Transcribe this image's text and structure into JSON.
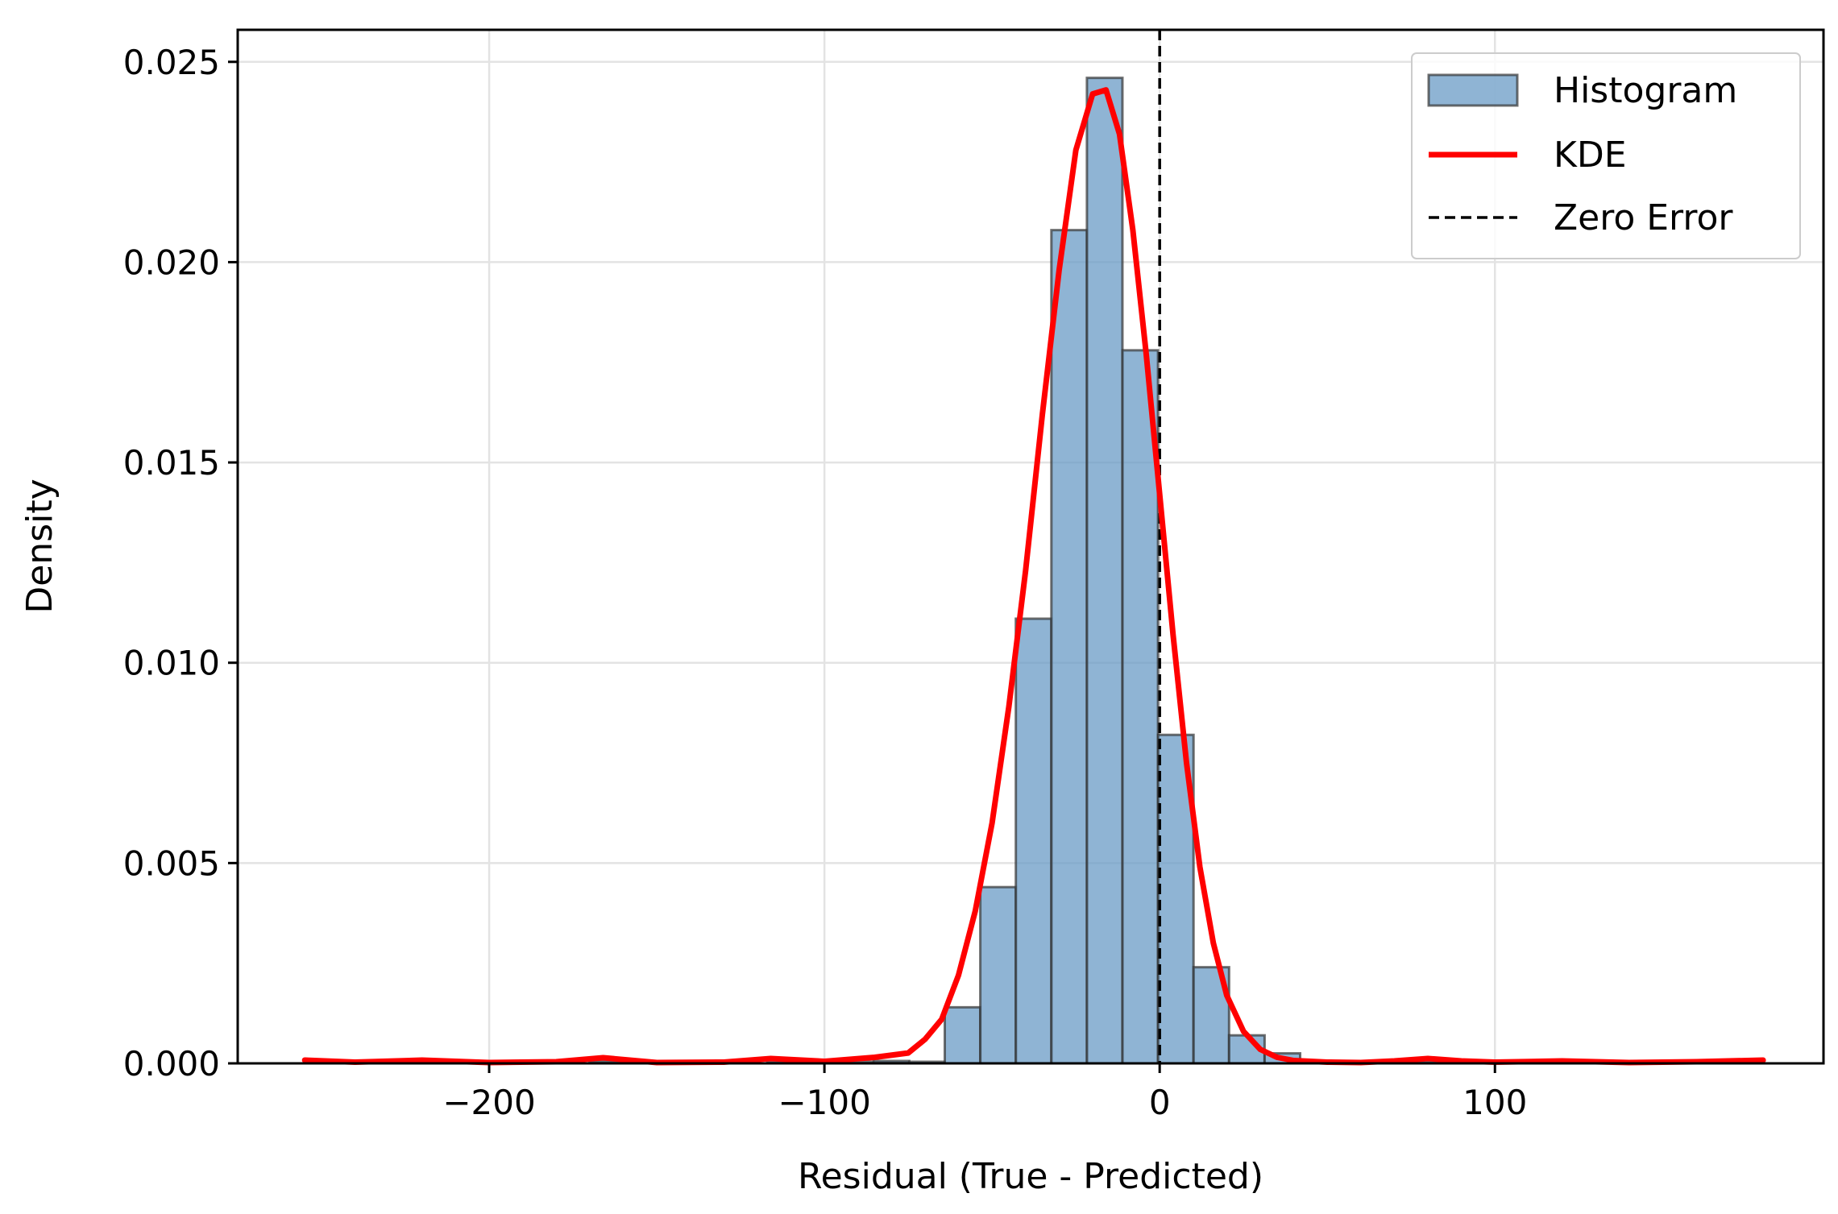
{
  "chart_data": {
    "type": "bar",
    "title": "",
    "xlabel": "Residual (True - Predicted)",
    "ylabel": "Density",
    "xlim": [
      -275,
      198
    ],
    "ylim": [
      0,
      0.0258
    ],
    "xticks": [
      -200,
      -100,
      0,
      100
    ],
    "xtick_labels": [
      "−200",
      "−100",
      "0",
      "100"
    ],
    "yticks": [
      0,
      0.005,
      0.01,
      0.015,
      0.02,
      0.025
    ],
    "ytick_labels": [
      "0.000",
      "0.005",
      "0.010",
      "0.015",
      "0.020",
      "0.025"
    ],
    "grid": true,
    "legend_position": "top-right",
    "series": [
      {
        "name": "Histogram",
        "kind": "histogram",
        "color": "#6a9bc6",
        "edge_color": "#333333",
        "bin_edges": [
          -254.9,
          -244.3,
          -233.7,
          -223.1,
          -212.5,
          -201.9,
          -191.3,
          -180.7,
          -170.1,
          -159.5,
          -148.9,
          -138.3,
          -127.7,
          -117.1,
          -106.5,
          -95.9,
          -85.3,
          -74.7,
          -64.1,
          -53.5,
          -42.9,
          -32.3,
          -21.7,
          -11.1,
          -0.5,
          10.1,
          20.7,
          31.3,
          41.9,
          52.5,
          63.1,
          73.7,
          84.3,
          94.9,
          105.5,
          116.1,
          126.7,
          137.3,
          147.9,
          158.5,
          169.1,
          179.7
        ],
        "values": [
          2e-05,
          0,
          0,
          3e-05,
          0,
          0,
          0,
          0,
          5e-05,
          0,
          0,
          0,
          0,
          4e-05,
          3e-05,
          4e-05,
          6e-05,
          4e-05,
          0.0014,
          0.0044,
          0.0111,
          0.0208,
          0.0246,
          0.0178,
          0.0082,
          0.0024,
          0.0007,
          0.00025,
          0,
          0,
          0,
          4e-05,
          0,
          0,
          2e-05,
          0,
          0,
          0,
          0,
          0,
          2e-05
        ]
      },
      {
        "name": "KDE",
        "kind": "line",
        "color": "#ff0000",
        "x": [
          -255,
          -240,
          -220,
          -200,
          -180,
          -166,
          -150,
          -130,
          -116,
          -100,
          -85,
          -75,
          -70,
          -65,
          -60,
          -55,
          -50,
          -45,
          -40,
          -35,
          -30,
          -25,
          -20,
          -16,
          -12,
          -8,
          -4,
          0,
          4,
          8,
          12,
          16,
          20,
          25,
          30,
          35,
          40,
          50,
          60,
          70,
          80,
          90,
          100,
          120,
          140,
          160,
          180
        ],
        "y": [
          8e-05,
          3e-05,
          8e-05,
          2e-05,
          4e-05,
          0.00014,
          2e-05,
          3e-05,
          0.00012,
          5e-05,
          0.00015,
          0.00026,
          0.0006,
          0.0011,
          0.0022,
          0.0038,
          0.006,
          0.0089,
          0.0123,
          0.0162,
          0.0198,
          0.0228,
          0.0242,
          0.0243,
          0.0232,
          0.0208,
          0.0177,
          0.0142,
          0.0107,
          0.0075,
          0.0049,
          0.003,
          0.0017,
          0.0008,
          0.00035,
          0.00015,
          7e-05,
          3e-05,
          2e-05,
          6e-05,
          0.00012,
          6e-05,
          3e-05,
          6e-05,
          2e-05,
          4e-05,
          8e-05
        ]
      },
      {
        "name": "Zero Error",
        "kind": "vline",
        "color": "#000000",
        "x": 0
      }
    ]
  }
}
